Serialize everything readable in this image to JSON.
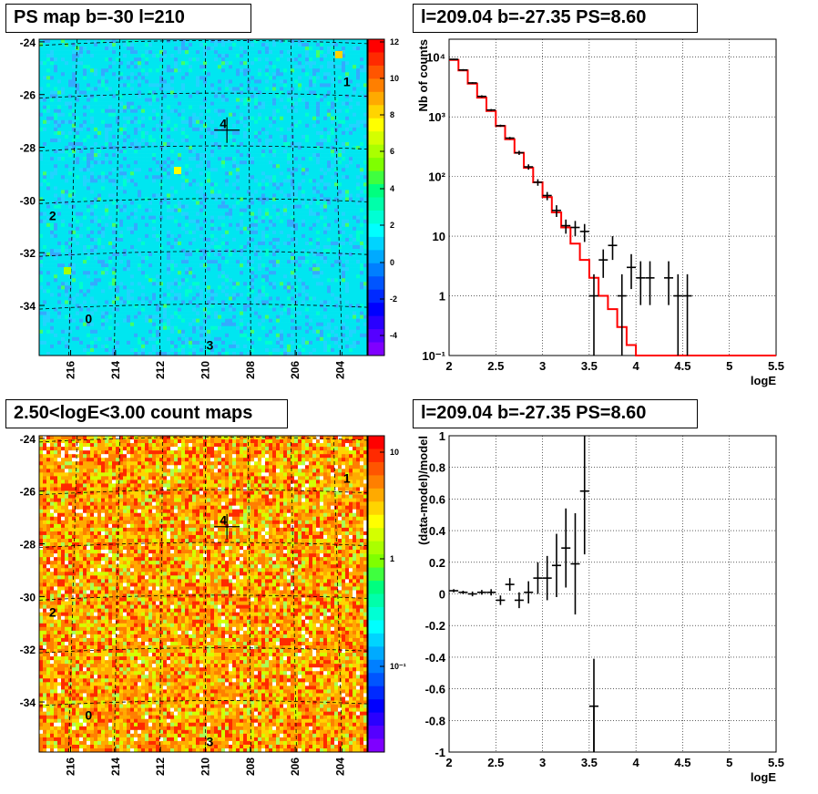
{
  "titles": {
    "map_top": "PS map b=-30 l=210",
    "spectrum": "l=209.04 b=-27.35 PS=8.60",
    "map_bottom": "2.50<logE<3.00 count maps",
    "residual": "l=209.04 b=-27.35 PS=8.60"
  },
  "colors": {
    "model_line": "#ff0000",
    "data_points": "#000000",
    "grid": "#000000",
    "map_top_background": "#00e6f0",
    "map_bottom_background": "#f5a623"
  },
  "chart_data": [
    {
      "type": "heatmap",
      "title": "PS map b=-30 l=210",
      "x_ticks": [
        "216",
        "214",
        "212",
        "210",
        "208",
        "206",
        "204"
      ],
      "y_ticks": [
        "-24",
        "-26",
        "-28",
        "-30",
        "-32",
        "-34"
      ],
      "xlim": [
        217.4,
        202.8
      ],
      "ylim": [
        -35.9,
        -23.9
      ],
      "colorbar_ticks": [
        "12",
        "10",
        "8",
        "6",
        "4",
        "2",
        "0",
        "-2",
        "-4"
      ],
      "colorbar_range": [
        -5,
        12
      ],
      "source_labels": [
        {
          "label": "0",
          "x": 215.2,
          "y": -34.5
        },
        {
          "label": "1",
          "x": 203.7,
          "y": -25.5
        },
        {
          "label": "2",
          "x": 216.8,
          "y": -30.6
        },
        {
          "label": "3",
          "x": 209.8,
          "y": -35.5
        },
        {
          "label": "4",
          "x": 209.2,
          "y": -27.1
        }
      ],
      "marker": {
        "x": 209.04,
        "y": -27.35
      }
    },
    {
      "type": "line",
      "title": "l=209.04 b=-27.35 PS=8.60",
      "xlabel": "logE",
      "ylabel": "Nb of counts",
      "xlim": [
        2,
        5.5
      ],
      "ylim": [
        0.1,
        20000
      ],
      "log_y": true,
      "x_ticks": [
        "2",
        "2.5",
        "3",
        "3.5",
        "4",
        "4.5",
        "5",
        "5.5"
      ],
      "y_ticks": [
        "10^-1",
        "1",
        "10",
        "10^2",
        "10^3",
        "10^4"
      ],
      "grid": true,
      "series": [
        {
          "kind": "model",
          "bin_edges": [
            2.0,
            2.1,
            2.2,
            2.3,
            2.4,
            2.5,
            2.6,
            2.7,
            2.8,
            2.9,
            3.0,
            3.1,
            3.2,
            3.3,
            3.4,
            3.5,
            3.6,
            3.7,
            3.8,
            3.9,
            4.0,
            4.1,
            4.2,
            4.3,
            4.4,
            4.5,
            4.6,
            4.7,
            4.8,
            4.9,
            5.0,
            5.1,
            5.2,
            5.3,
            5.4,
            5.5
          ],
          "values": [
            9000,
            6000,
            3600,
            2100,
            1250,
            700,
            420,
            250,
            140,
            80,
            45,
            25,
            14,
            7.5,
            4,
            2,
            1,
            0.6,
            0.3,
            0.15,
            0.1,
            0.1,
            0.1,
            0.1,
            0.1,
            0.1,
            0.1,
            0.1,
            0.1,
            0.1,
            0.1,
            0.1,
            0.1,
            0.1,
            0.1
          ]
        },
        {
          "kind": "data",
          "x": [
            2.05,
            2.15,
            2.25,
            2.35,
            2.45,
            2.55,
            2.65,
            2.75,
            2.85,
            2.95,
            3.05,
            3.15,
            3.25,
            3.35,
            3.45,
            3.55,
            3.65,
            3.75,
            3.85,
            3.95,
            4.05,
            4.15,
            4.35,
            4.45,
            4.55
          ],
          "y": [
            9200,
            6100,
            3700,
            2200,
            1300,
            710,
            440,
            250,
            145,
            80,
            48,
            27,
            15,
            14,
            12,
            1,
            4,
            7,
            1,
            3,
            2,
            2,
            2,
            1,
            1
          ],
          "y_low": [
            9000,
            5900,
            3600,
            2100,
            1250,
            680,
            420,
            230,
            130,
            70,
            40,
            21,
            11,
            10,
            8,
            0.1,
            2,
            4,
            0.1,
            1.3,
            0.7,
            0.7,
            0.7,
            0.1,
            0.1
          ],
          "y_high": [
            9400,
            6300,
            3800,
            2300,
            1350,
            740,
            460,
            270,
            160,
            90,
            55,
            33,
            19,
            18,
            16,
            2.3,
            6,
            10,
            2.3,
            5,
            3.8,
            3.8,
            3.8,
            2.3,
            2.3
          ]
        }
      ]
    },
    {
      "type": "heatmap",
      "title": "2.50<logE<3.00 count maps",
      "x_ticks": [
        "216",
        "214",
        "212",
        "210",
        "208",
        "206",
        "204"
      ],
      "y_ticks": [
        "-24",
        "-26",
        "-28",
        "-30",
        "-32",
        "-34"
      ],
      "xlim": [
        217.4,
        202.8
      ],
      "ylim": [
        -35.9,
        -23.9
      ],
      "colorbar_ticks": [
        "10",
        "1",
        "10^-1"
      ],
      "log_scale": true,
      "source_labels": [
        {
          "label": "0",
          "x": 215.2,
          "y": -34.5
        },
        {
          "label": "1",
          "x": 203.7,
          "y": -25.5
        },
        {
          "label": "2",
          "x": 216.8,
          "y": -30.6
        },
        {
          "label": "3",
          "x": 209.8,
          "y": -35.5
        },
        {
          "label": "4",
          "x": 209.2,
          "y": -27.1
        }
      ],
      "marker": {
        "x": 209.04,
        "y": -27.35
      }
    },
    {
      "type": "scatter",
      "title": "l=209.04 b=-27.35 PS=8.60",
      "xlabel": "logE",
      "ylabel": "(data-model)/model",
      "xlim": [
        2,
        5.5
      ],
      "ylim": [
        -1,
        1
      ],
      "x_ticks": [
        "2",
        "2.5",
        "3",
        "3.5",
        "4",
        "4.5",
        "5",
        "5.5"
      ],
      "y_ticks": [
        "-1",
        "-0.8",
        "-0.6",
        "-0.4",
        "-0.2",
        "0",
        "0.2",
        "0.4",
        "0.6",
        "0.8",
        "1"
      ],
      "grid": true,
      "series": [
        {
          "kind": "data",
          "x": [
            2.05,
            2.15,
            2.25,
            2.35,
            2.45,
            2.55,
            2.65,
            2.75,
            2.85,
            2.95,
            3.05,
            3.15,
            3.25,
            3.35,
            3.45,
            3.55
          ],
          "y": [
            0.02,
            0.01,
            0.0,
            0.01,
            0.01,
            -0.04,
            0.06,
            -0.04,
            0.01,
            0.1,
            0.1,
            0.18,
            0.29,
            0.19,
            0.65,
            -0.71
          ],
          "y_err": [
            0.01,
            0.01,
            0.015,
            0.015,
            0.02,
            0.03,
            0.04,
            0.05,
            0.07,
            0.1,
            0.14,
            0.2,
            0.25,
            0.32,
            0.4,
            0.3
          ]
        }
      ]
    }
  ]
}
